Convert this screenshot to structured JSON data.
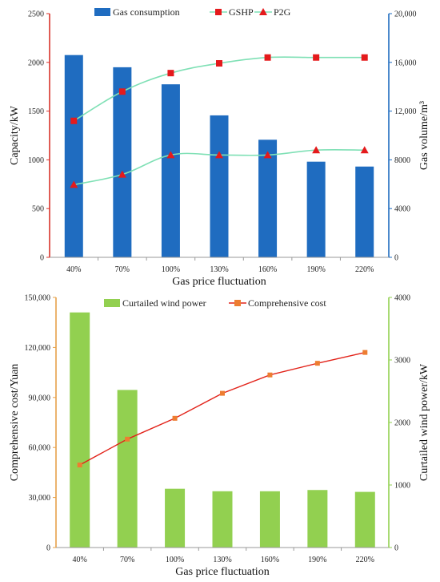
{
  "chart_data": [
    {
      "type": "bar+line",
      "categories": [
        "40%",
        "70%",
        "100%",
        "130%",
        "160%",
        "190%",
        "220%"
      ],
      "xlabel": "Gas price fluctuation",
      "ylabel_left": "Capacity/kW",
      "ylabel_right": "Gas volume/m³",
      "ylim_left": [
        0,
        2500
      ],
      "yticks_left": [
        "0",
        "500",
        "1000",
        "1500",
        "2000",
        "2500"
      ],
      "ylim_right": [
        0,
        20000
      ],
      "yticks_right": [
        "0",
        "4000",
        "8000",
        "12,000",
        "16,000",
        "20,000"
      ],
      "legend_position": "top",
      "series": [
        {
          "name": "Gas consumption",
          "kind": "bar",
          "axis": "right",
          "color": "#1f6cc0",
          "values": [
            16600,
            15600,
            14200,
            11650,
            9650,
            7850,
            7450
          ]
        },
        {
          "name": "GSHP",
          "kind": "line",
          "axis": "left",
          "marker": "square",
          "color": "#e41a1c",
          "line_color": "#7fe0b5",
          "values": [
            1400,
            1700,
            1890,
            1990,
            2050,
            2050,
            2050
          ]
        },
        {
          "name": "P2G",
          "kind": "line",
          "axis": "left",
          "marker": "triangle",
          "color": "#e41a1c",
          "line_color": "#7fe0b5",
          "values": [
            745,
            850,
            1050,
            1050,
            1050,
            1100,
            1100
          ]
        }
      ]
    },
    {
      "type": "bar+line",
      "categories": [
        "40%",
        "70%",
        "100%",
        "130%",
        "160%",
        "190%",
        "220%"
      ],
      "xlabel": "Gas price fluctuation",
      "ylabel_left": "Comprehensive cost/Yuan",
      "ylabel_right": "Curtailed wind power/kW",
      "ylim_left": [
        0,
        150000
      ],
      "yticks_left": [
        "0",
        "30,000",
        "60,000",
        "90,000",
        "120,000",
        "150,000"
      ],
      "ylim_right": [
        0,
        4000
      ],
      "yticks_right": [
        "0",
        "1000",
        "2000",
        "3000",
        "4000"
      ],
      "legend_position": "top",
      "series": [
        {
          "name": "Curtailed wind power",
          "kind": "bar",
          "axis": "right",
          "color": "#92d050",
          "values": [
            3760,
            2520,
            940,
            900,
            900,
            920,
            890
          ]
        },
        {
          "name": "Comprehensive cost",
          "kind": "line",
          "axis": "left",
          "marker": "square",
          "color": "#ed7d31",
          "line_color": "#e2231a",
          "values": [
            49500,
            65000,
            77500,
            92500,
            103500,
            110500,
            117000
          ]
        }
      ]
    }
  ]
}
